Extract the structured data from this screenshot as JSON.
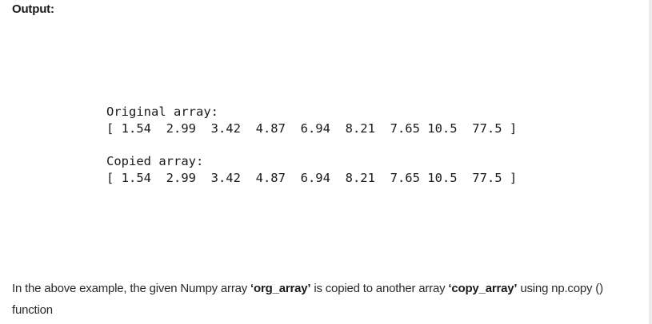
{
  "heading": "Output:",
  "output": {
    "original_label": "Original array:",
    "original_values": "[ 1.54  2.99  3.42  4.87  6.94  8.21  7.65 10.5  77.5 ]",
    "copied_label": "Copied array:",
    "copied_values": "[ 1.54  2.99  3.42  4.87  6.94  8.21  7.65 10.5  77.5 ]"
  },
  "explanation": {
    "part1": "In the above example, the given Numpy array ",
    "org_array": "‘org_array’",
    "part2": " is copied to another array ",
    "copy_array": "‘copy_array’",
    "part3": " using np.copy () function"
  }
}
